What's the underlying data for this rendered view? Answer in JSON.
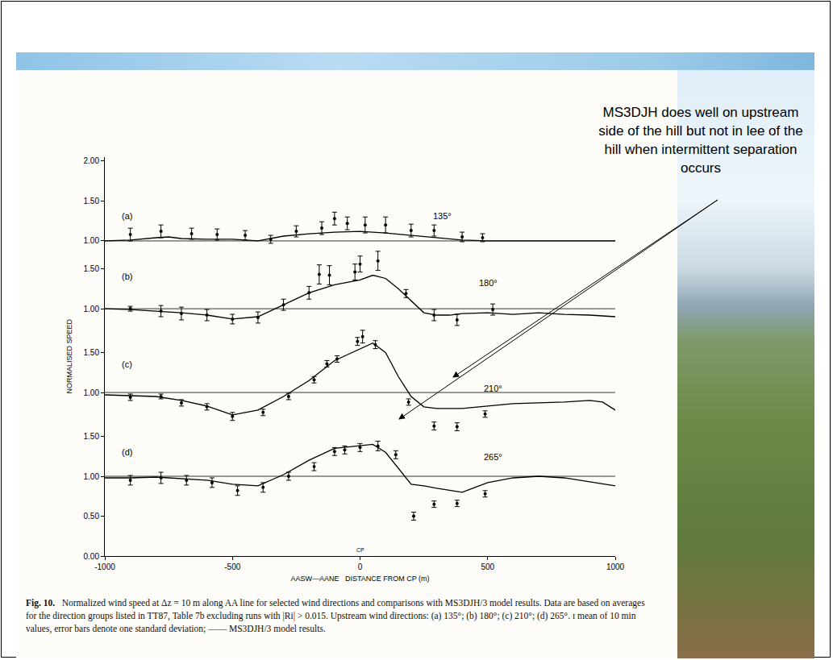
{
  "x_label": "AASW—AANE   DISTANCE FROM CP (m)",
  "y_label": "NORMALISED SPEED",
  "xlim": [
    -1000,
    1000
  ],
  "xticks": [
    -1000,
    -500,
    0,
    500,
    1000
  ],
  "markers": [
    {
      "x": 0,
      "label": "CP"
    }
  ],
  "note": "MS3DJH does well on upstream side of the hill but not in lee of the hill when intermittent separation occurs",
  "caption_label": "Fig. 10.",
  "caption": "Normalized wind speed at Δz = 10 m along AA line for selected wind directions and comparisons with MS3DJH/3 model results. Data are based on averages for the direction groups listed in TT87, Table 7b excluding runs with |Ri| > 0.015. Upstream wind directions: (a) 135°; (b) 180°; (c) 210°; (d) 265°. ɪ mean of 10 min values, error bars denote one standard deviation; —— MS3DJH/3 model results.",
  "chart_data": [
    {
      "type": "scatter",
      "label": "(a)",
      "direction": "135°",
      "reference": 1.0,
      "ylim": [
        0.95,
        2.05
      ],
      "yticks": [
        {
          "value": 1.0,
          "label": "1.00"
        },
        {
          "value": 1.5,
          "label": "1.50"
        },
        {
          "value": 2.0,
          "label": "2.00"
        }
      ],
      "series": [
        {
          "type": "scatter",
          "marker": "circle",
          "color": "#000000",
          "x": [
            -900,
            -780,
            -660,
            -560,
            -450,
            -350,
            -250,
            -150,
            -100,
            -50,
            20,
            100,
            200,
            290,
            400,
            480
          ],
          "values": [
            1.08,
            1.12,
            1.09,
            1.08,
            1.07,
            1.02,
            1.12,
            1.16,
            1.28,
            1.22,
            1.2,
            1.2,
            1.13,
            1.13,
            1.05,
            1.04
          ],
          "errors": [
            0.08,
            0.08,
            0.07,
            0.07,
            0.06,
            0.05,
            0.07,
            0.08,
            0.08,
            0.08,
            0.1,
            0.1,
            0.08,
            0.07,
            0.06,
            0.05
          ]
        },
        {
          "type": "line",
          "line_style": "solid",
          "color": "#000000",
          "x": [
            -1000,
            -900,
            -800,
            -750,
            -700,
            -600,
            -500,
            -400,
            -300,
            -200,
            -100,
            0,
            100,
            200,
            300,
            400,
            500,
            600,
            800,
            1000
          ],
          "values": [
            1.0,
            1.01,
            1.04,
            1.05,
            1.03,
            1.02,
            1.02,
            1.0,
            1.06,
            1.09,
            1.11,
            1.12,
            1.1,
            1.07,
            1.04,
            1.01,
            1.0,
            1.0,
            1.0,
            1.0
          ]
        }
      ]
    },
    {
      "type": "scatter",
      "label": "(b)",
      "direction": "180°",
      "reference": 1.0,
      "ylim": [
        0.75,
        1.8
      ],
      "yticks": [
        {
          "value": 1.0,
          "label": "1.00"
        },
        {
          "value": 1.5,
          "label": "1.50"
        }
      ],
      "series": [
        {
          "type": "scatter",
          "marker": "circle",
          "color": "#000000",
          "x": [
            -900,
            -780,
            -700,
            -600,
            -500,
            -400,
            -300,
            -200,
            -160,
            -120,
            -20,
            0,
            70,
            180,
            290,
            380,
            520
          ],
          "values": [
            1.0,
            0.97,
            0.94,
            0.92,
            0.87,
            0.89,
            1.05,
            1.2,
            1.43,
            1.42,
            1.46,
            1.56,
            1.6,
            1.19,
            0.92,
            0.86,
            0.99
          ],
          "errors": [
            0.03,
            0.07,
            0.08,
            0.07,
            0.06,
            0.07,
            0.07,
            0.08,
            0.12,
            0.12,
            0.1,
            0.1,
            0.12,
            0.05,
            0.07,
            0.07,
            0.07
          ]
        },
        {
          "type": "line",
          "line_style": "solid",
          "color": "#000000",
          "x": [
            -1000,
            -900,
            -800,
            -700,
            -600,
            -500,
            -400,
            -300,
            -200,
            -100,
            0,
            50,
            100,
            150,
            200,
            250,
            300,
            350,
            400,
            500,
            600,
            700,
            800,
            900,
            1000
          ],
          "values": [
            1.0,
            0.99,
            0.97,
            0.95,
            0.92,
            0.87,
            0.9,
            1.05,
            1.2,
            1.3,
            1.36,
            1.42,
            1.38,
            1.25,
            1.1,
            0.95,
            0.92,
            0.92,
            0.94,
            0.95,
            0.93,
            0.95,
            0.93,
            0.92,
            0.9
          ]
        }
      ]
    },
    {
      "type": "scatter",
      "label": "(c)",
      "direction": "210°",
      "reference": 1.0,
      "ylim": [
        0.5,
        1.8
      ],
      "yticks": [
        {
          "value": 1.0,
          "label": "1.00"
        },
        {
          "value": 1.5,
          "label": "1.50"
        }
      ],
      "series": [
        {
          "type": "scatter",
          "marker": "circle",
          "color": "#000000",
          "x": [
            -900,
            -780,
            -700,
            -600,
            -500,
            -380,
            -280,
            -180,
            -130,
            -90,
            -10,
            10,
            60,
            190,
            290,
            380,
            490
          ],
          "values": [
            0.94,
            0.95,
            0.87,
            0.82,
            0.7,
            0.75,
            0.95,
            1.16,
            1.36,
            1.42,
            1.64,
            1.7,
            1.6,
            0.88,
            0.58,
            0.57,
            0.73
          ],
          "errors": [
            0.04,
            0.03,
            0.04,
            0.04,
            0.05,
            0.04,
            0.04,
            0.04,
            0.04,
            0.04,
            0.05,
            0.08,
            0.05,
            0.04,
            0.05,
            0.05,
            0.04
          ]
        },
        {
          "type": "line",
          "line_style": "solid",
          "color": "#000000",
          "x": [
            -1000,
            -900,
            -800,
            -700,
            -600,
            -500,
            -400,
            -300,
            -200,
            -100,
            0,
            50,
            100,
            150,
            200,
            250,
            300,
            400,
            500,
            600,
            700,
            800,
            900,
            950,
            1000
          ],
          "values": [
            0.97,
            0.96,
            0.95,
            0.9,
            0.83,
            0.72,
            0.78,
            0.95,
            1.15,
            1.4,
            1.55,
            1.62,
            1.5,
            1.2,
            0.95,
            0.82,
            0.8,
            0.8,
            0.83,
            0.86,
            0.87,
            0.88,
            0.9,
            0.88,
            0.78
          ]
        }
      ]
    },
    {
      "type": "scatter",
      "label": "(d)",
      "direction": "265°",
      "reference": 1.0,
      "ylim": [
        0,
        1.55
      ],
      "yticks": [
        {
          "value": 0,
          "label": "0.00"
        },
        {
          "value": 0.5,
          "label": "0.50"
        },
        {
          "value": 1.0,
          "label": "1.00"
        },
        {
          "value": 1.5,
          "label": "1.50"
        }
      ],
      "series": [
        {
          "type": "scatter",
          "marker": "circle",
          "color": "#000000",
          "x": [
            -900,
            -780,
            -680,
            -580,
            -480,
            -380,
            -280,
            -180,
            -100,
            -60,
            0,
            70,
            140,
            210,
            290,
            380,
            490
          ],
          "values": [
            0.95,
            0.98,
            0.95,
            0.92,
            0.82,
            0.86,
            1.0,
            1.12,
            1.31,
            1.33,
            1.36,
            1.38,
            1.27,
            0.5,
            0.65,
            0.66,
            0.78
          ],
          "errors": [
            0.06,
            0.07,
            0.06,
            0.06,
            0.06,
            0.06,
            0.05,
            0.05,
            0.05,
            0.05,
            0.05,
            0.06,
            0.05,
            0.05,
            0.04,
            0.04,
            0.04
          ]
        },
        {
          "type": "line",
          "line_style": "solid",
          "color": "#000000",
          "x": [
            -1000,
            -900,
            -800,
            -700,
            -600,
            -500,
            -400,
            -300,
            -200,
            -100,
            0,
            50,
            100,
            150,
            200,
            250,
            300,
            400,
            500,
            600,
            700,
            800,
            900,
            1000
          ],
          "values": [
            0.98,
            0.98,
            0.99,
            0.97,
            0.95,
            0.9,
            0.88,
            1.02,
            1.2,
            1.35,
            1.38,
            1.4,
            1.3,
            1.1,
            0.9,
            0.88,
            0.85,
            0.8,
            0.92,
            0.98,
            1.0,
            0.98,
            0.93,
            0.88
          ]
        }
      ]
    }
  ]
}
